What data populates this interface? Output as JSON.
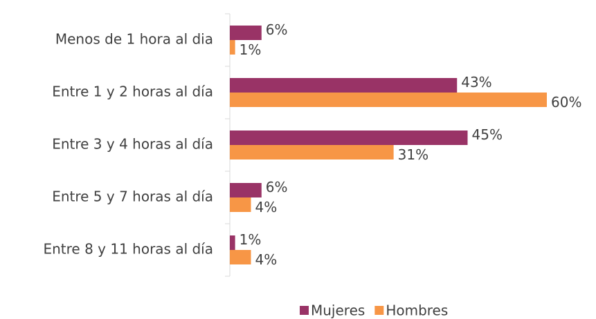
{
  "chart_data": {
    "type": "barh",
    "categories": [
      "Menos de 1 hora al dia",
      "Entre 1 y 2 horas al día",
      "Entre 3 y 4 horas al día",
      "Entre 5 y 7 horas al día",
      "Entre 8 y 11 horas al día"
    ],
    "series": [
      {
        "name": "Mujeres",
        "color": "#993366",
        "values": [
          6,
          43,
          45,
          6,
          1
        ],
        "value_labels": [
          "6%",
          "43%",
          "45%",
          "6%",
          "1%"
        ]
      },
      {
        "name": "Hombres",
        "color": "#f79646",
        "values": [
          1,
          60,
          31,
          4,
          4
        ],
        "value_labels": [
          "1%",
          "60%",
          "31%",
          "4%",
          "4%"
        ]
      }
    ],
    "xlim": [
      0,
      60
    ],
    "legend": "bottom"
  }
}
